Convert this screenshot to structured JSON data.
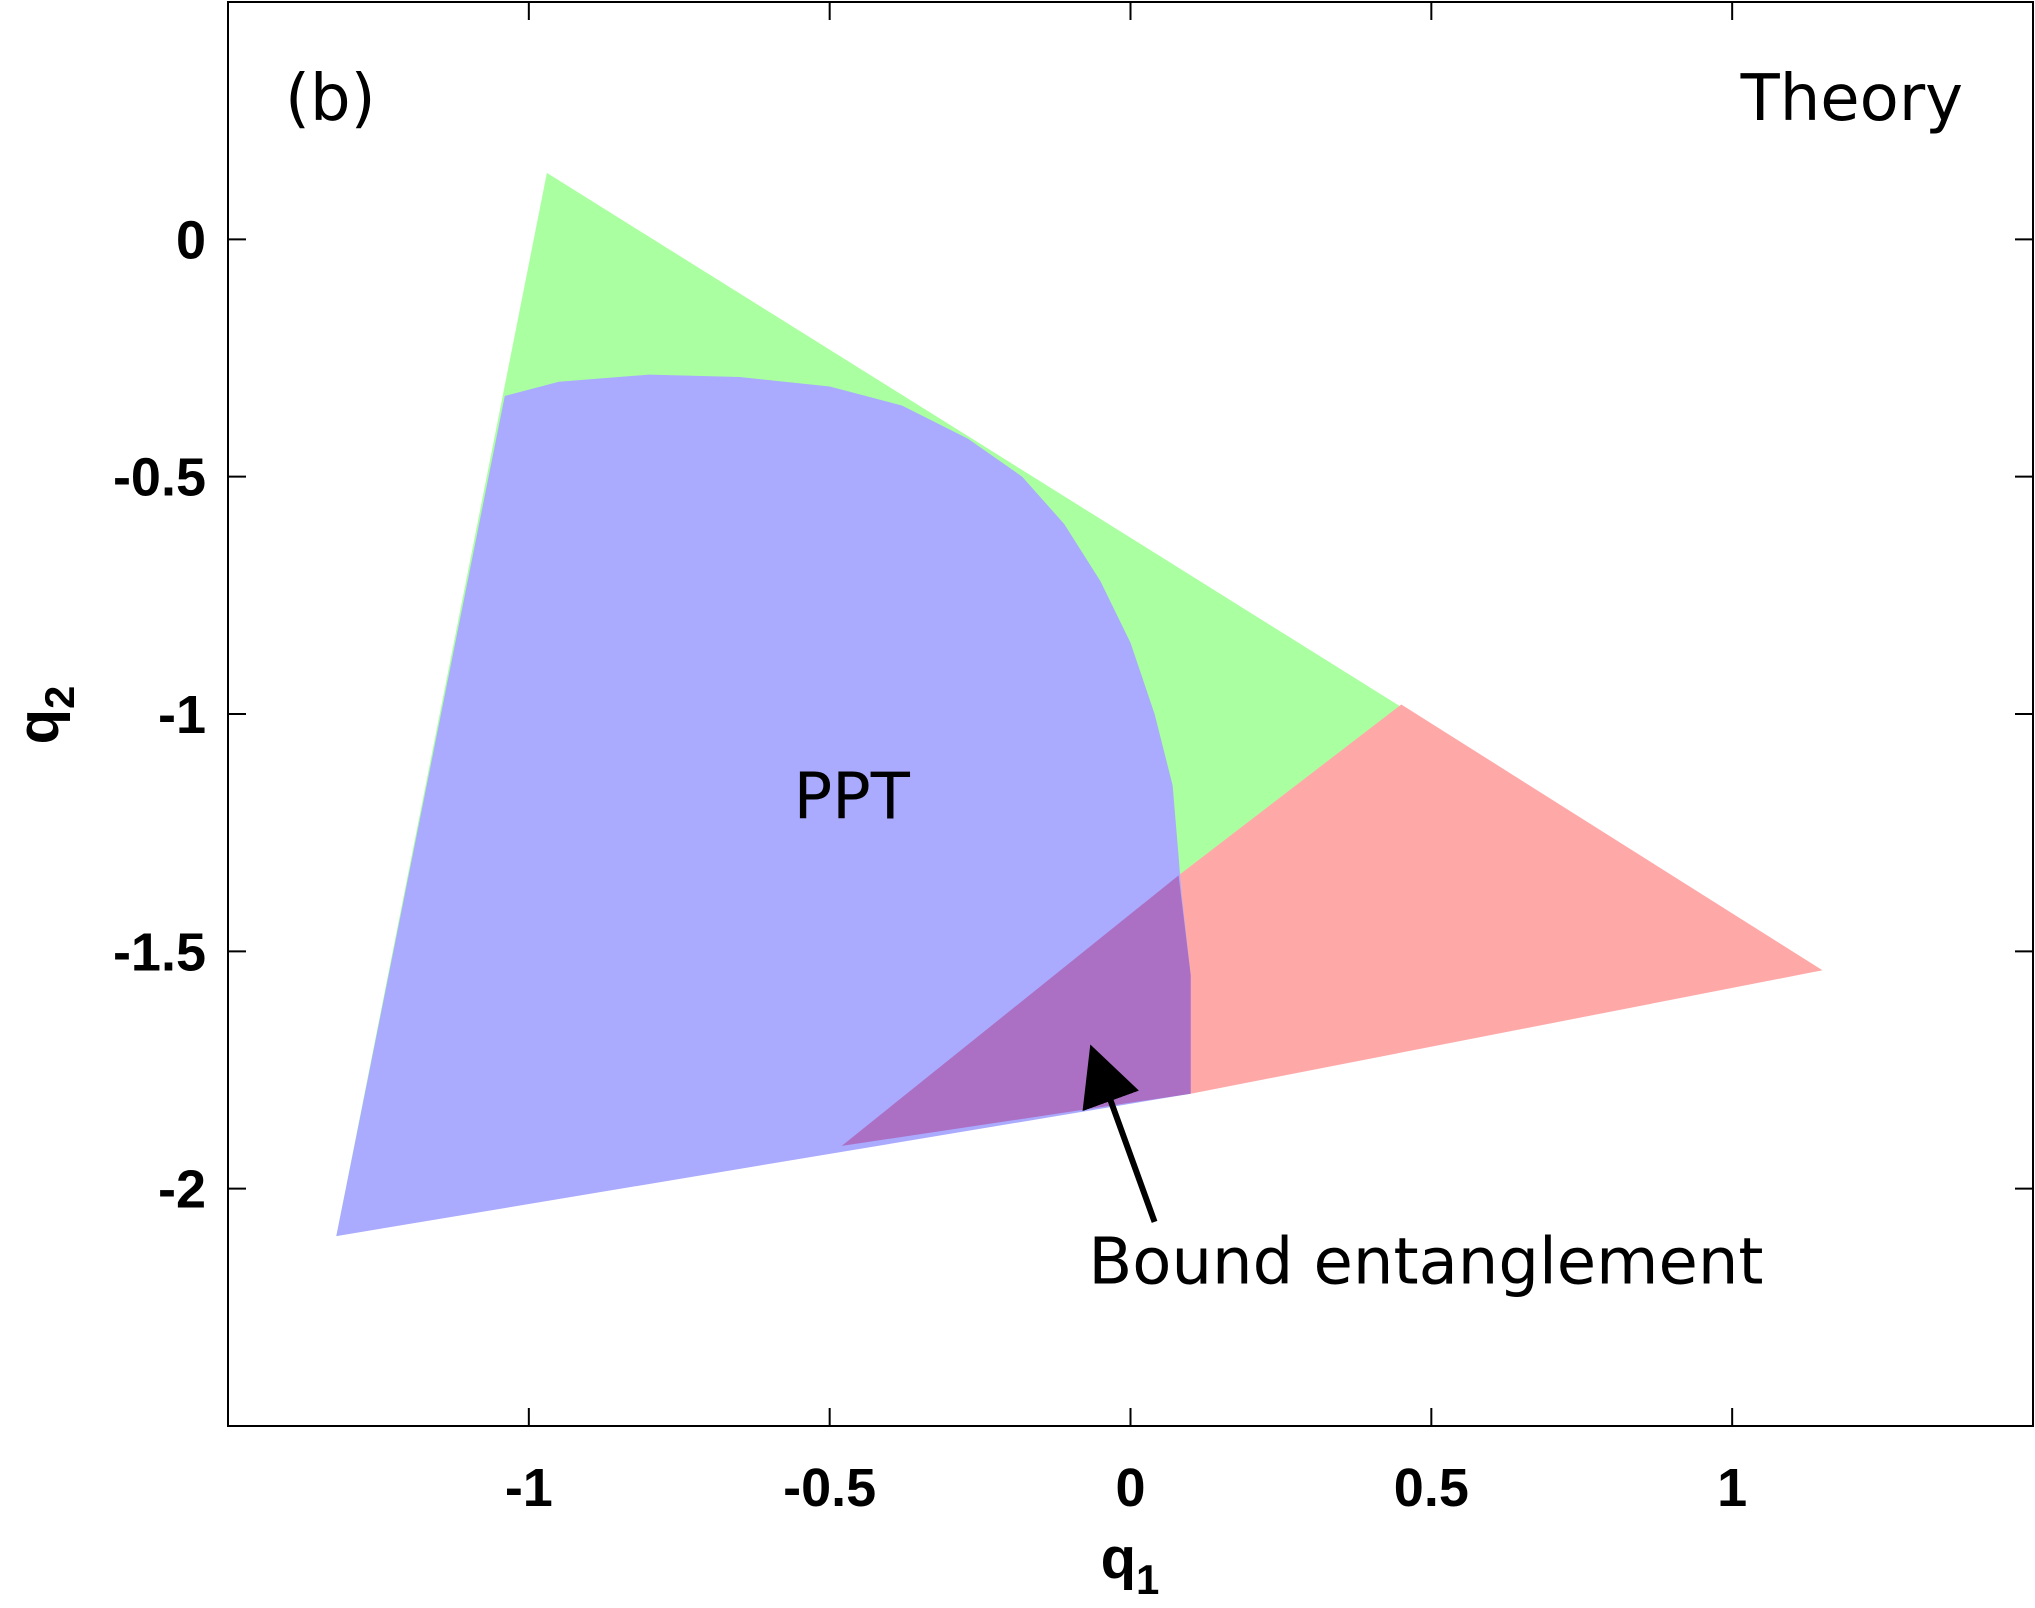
{
  "chart_data": {
    "type": "area",
    "panel_label": "(b)",
    "title": "Theory",
    "xlabel": {
      "base": "q",
      "sub": "1"
    },
    "ylabel": {
      "base": "q",
      "sub": "2"
    },
    "xlim": [
      -1.5,
      1.5
    ],
    "ylim": [
      -2.5,
      0.5
    ],
    "xticks": [
      -1,
      -0.5,
      0,
      0.5,
      1
    ],
    "xtick_labels": [
      "-1",
      "-0.5",
      "0",
      "0.5",
      "1"
    ],
    "yticks": [
      0,
      -0.5,
      -1,
      -1.5,
      -2
    ],
    "ytick_labels": [
      "0",
      "-0.5",
      "-1",
      "-1.5",
      "-2"
    ],
    "grid": false,
    "regions": [
      {
        "key": "valid",
        "color": "#aaffa0",
        "polygon": [
          [
            -0.97,
            0.14
          ],
          [
            1.15,
            -1.54
          ],
          [
            -1.32,
            -2.1
          ]
        ]
      },
      {
        "key": "entangled",
        "color": "#ffa8a8",
        "polygon": [
          [
            0.45,
            -0.98
          ],
          [
            1.15,
            -1.54
          ],
          [
            0.1,
            -1.8
          ],
          [
            0.08,
            -1.34
          ]
        ]
      },
      {
        "key": "ppt",
        "color": "#aaaaff",
        "polygon": [
          [
            -1.04,
            -0.33
          ],
          [
            -0.95,
            -0.3
          ],
          [
            -0.8,
            -0.285
          ],
          [
            -0.65,
            -0.29
          ],
          [
            -0.5,
            -0.31
          ],
          [
            -0.38,
            -0.35
          ],
          [
            -0.27,
            -0.42
          ],
          [
            -0.18,
            -0.5
          ],
          [
            -0.11,
            -0.6
          ],
          [
            -0.05,
            -0.72
          ],
          [
            0.0,
            -0.85
          ],
          [
            0.04,
            -1.0
          ],
          [
            0.07,
            -1.15
          ],
          [
            0.08,
            -1.3
          ],
          [
            0.085,
            -1.38
          ],
          [
            0.1,
            -1.55
          ],
          [
            0.1,
            -1.8
          ],
          [
            -1.32,
            -2.1
          ]
        ]
      },
      {
        "key": "bound",
        "color": "#ab70c4",
        "polygon": [
          [
            0.08,
            -1.34
          ],
          [
            0.1,
            -1.55
          ],
          [
            0.1,
            -1.8
          ],
          [
            -0.48,
            -1.91
          ]
        ]
      }
    ],
    "annotations": [
      {
        "key": "ppt",
        "text": "PPT",
        "x": -0.56,
        "y": -1.22
      },
      {
        "key": "bound",
        "text": "Bound entanglement",
        "x": -0.07,
        "y": -2.2,
        "arrow_from": [
          0.04,
          -2.07
        ],
        "arrow_to": [
          -0.06,
          -1.72
        ]
      }
    ]
  }
}
